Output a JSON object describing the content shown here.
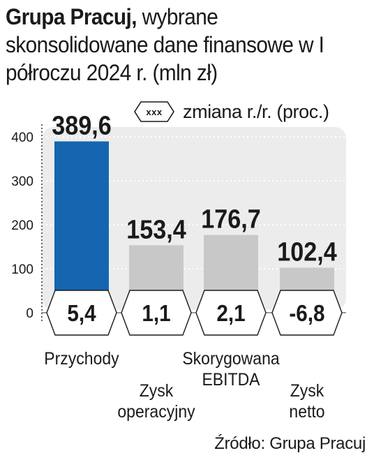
{
  "title": {
    "strong": "Grupa Pracuj,",
    "rest": "wybrane skonsolidowane dane finansowe w I półroczu 2024 r. (mln zł)"
  },
  "legend": {
    "sample": "xxx",
    "label": "zmiana r./r. (proc.)"
  },
  "source": "Źródło: Grupa Pracuj",
  "colors": {
    "highlight": "#1565b0",
    "bar": "#c8c8c8",
    "panel": "#ececec",
    "text": "#1a1a1a"
  },
  "chart_data": {
    "type": "bar",
    "ylim": [
      0,
      400
    ],
    "yticks": [
      0,
      100,
      200,
      300,
      400
    ],
    "grid": true,
    "categories": [
      [
        "Przychody"
      ],
      [
        "Zysk",
        "operacyjny"
      ],
      [
        "Skorygowana",
        "EBITDA"
      ],
      [
        "Zysk",
        "netto"
      ]
    ],
    "values": [
      389.6,
      153.4,
      176.7,
      102.4
    ],
    "value_labels": [
      "389,6",
      "153,4",
      "176,7",
      "102,4"
    ],
    "change_pct": [
      5.4,
      1.1,
      2.1,
      -6.8
    ],
    "change_labels": [
      "5,4",
      "1,1",
      "2,1",
      "-6,8"
    ],
    "highlighted_index": 0
  }
}
